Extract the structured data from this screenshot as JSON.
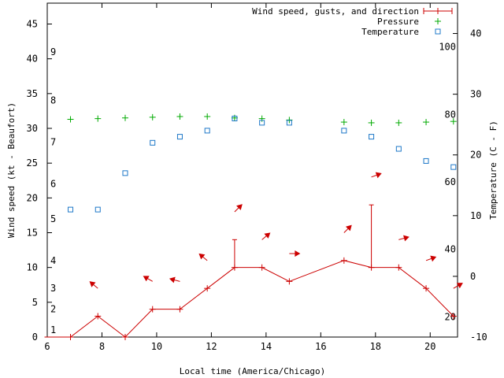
{
  "chart_data": {
    "type": "line",
    "xlabel": "Local time (America/Chicago)",
    "ylabel_left": "Wind speed (kt - Beaufort)",
    "ylabel_right": "Temperature (C - F)",
    "xlim": [
      6,
      21
    ],
    "ylim_left": [
      0,
      48
    ],
    "ylim_right_c": [
      -10,
      45
    ],
    "x_ticks": [
      6,
      8,
      10,
      12,
      14,
      16,
      18,
      20
    ],
    "y_ticks_left": [
      0,
      5,
      10,
      15,
      20,
      25,
      30,
      35,
      40,
      45
    ],
    "y_ticks_right_c": [
      -10,
      0,
      10,
      20,
      30,
      40
    ],
    "fahrenheit_labels": [
      {
        "label": "20",
        "c": -6.67
      },
      {
        "label": "40",
        "c": 4.44
      },
      {
        "label": "60",
        "c": 15.56
      },
      {
        "label": "80",
        "c": 26.67
      },
      {
        "label": "100",
        "c": 37.78
      }
    ],
    "beaufort_labels": [
      {
        "label": "1",
        "kt": 1
      },
      {
        "label": "2",
        "kt": 4
      },
      {
        "label": "3",
        "kt": 7
      },
      {
        "label": "4",
        "kt": 11
      },
      {
        "label": "5",
        "kt": 17
      },
      {
        "label": "6",
        "kt": 22
      },
      {
        "label": "7",
        "kt": 28
      },
      {
        "label": "8",
        "kt": 34
      },
      {
        "label": "9",
        "kt": 41
      }
    ],
    "legend": [
      {
        "label": "Wind speed, gusts, and direction",
        "color": "#cc0000"
      },
      {
        "label": "Pressure",
        "color": "#00aa00"
      },
      {
        "label": "Temperature",
        "color": "#1e78c8"
      }
    ],
    "series": [
      {
        "name": "Wind speed, gusts, and direction",
        "color": "#cc0000",
        "x": [
          5.9,
          6.85,
          7.85,
          8.85,
          9.85,
          10.85,
          11.85,
          12.85,
          13.85,
          14.85,
          16.85,
          17.85,
          18.85,
          19.85,
          20.85
        ],
        "y": [
          0,
          0,
          3,
          0,
          4,
          4,
          7,
          10,
          10,
          8,
          11,
          10,
          10,
          7,
          3
        ]
      },
      {
        "name": "Gusts",
        "color": "#cc0000",
        "x": [
          12.85,
          17.85
        ],
        "base": [
          10,
          10
        ],
        "y": [
          14,
          19
        ]
      },
      {
        "name": "Pressure",
        "color": "#00aa00",
        "x": [
          6.85,
          7.85,
          8.85,
          9.85,
          10.85,
          11.85,
          12.85,
          13.85,
          14.85,
          16.85,
          17.85,
          18.85,
          19.85,
          20.85
        ],
        "y": [
          31.3,
          31.4,
          31.5,
          31.6,
          31.7,
          31.7,
          31.5,
          31.4,
          31.2,
          30.9,
          30.8,
          30.8,
          30.9,
          31.0
        ]
      },
      {
        "name": "Temperature",
        "color": "#1e78c8",
        "x": [
          6.85,
          7.85,
          8.85,
          9.85,
          10.85,
          11.85,
          12.85,
          13.85,
          14.85,
          16.85,
          17.85,
          18.85,
          19.85,
          20.85
        ],
        "y": [
          11,
          11,
          17,
          22,
          23,
          24,
          26,
          25.3,
          25.3,
          24,
          23,
          21,
          19,
          18
        ]
      }
    ],
    "direction_arrows": [
      {
        "x": 7.85,
        "y": 7,
        "angle": 40
      },
      {
        "x": 9.85,
        "y": 8,
        "angle": 30
      },
      {
        "x": 10.85,
        "y": 8,
        "angle": 15
      },
      {
        "x": 11.85,
        "y": 11,
        "angle": 40
      },
      {
        "x": 12.85,
        "y": 18,
        "angle": 135
      },
      {
        "x": 13.85,
        "y": 14,
        "angle": 140
      },
      {
        "x": 14.85,
        "y": 12,
        "angle": 180
      },
      {
        "x": 16.85,
        "y": 15,
        "angle": 135
      },
      {
        "x": 17.85,
        "y": 23,
        "angle": 160
      },
      {
        "x": 18.85,
        "y": 14,
        "angle": 165
      },
      {
        "x": 19.85,
        "y": 11,
        "angle": 160
      },
      {
        "x": 20.85,
        "y": 7,
        "angle": 150
      }
    ]
  }
}
